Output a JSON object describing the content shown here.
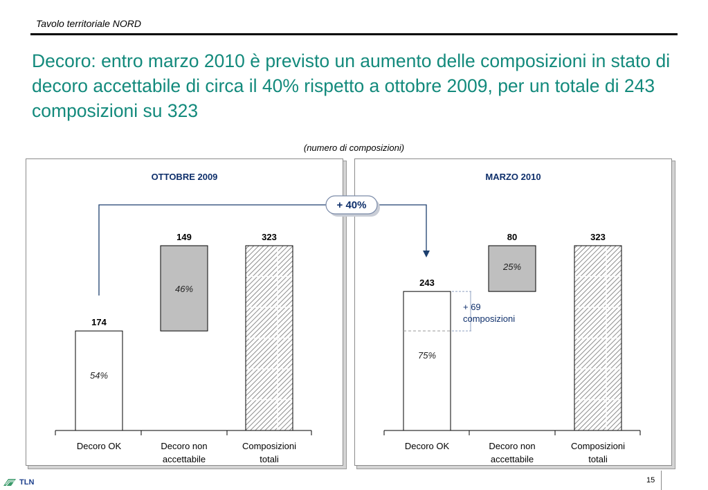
{
  "header": {
    "text": "Tavolo territoriale NORD"
  },
  "title": "Decoro: entro marzo 2010 è previsto un aumento delle composizioni in stato di decoro accettabile di circa il 40% rispetto a ottobre 2009, per un totale di 243 composizioni su 323",
  "subtitle": "(numero di  composizioni)",
  "growth_badge": "+ 40%",
  "increase_note": [
    "+ 69",
    "composizioni"
  ],
  "footer": {
    "logo_text": "TLN",
    "page_number": "15"
  },
  "colors": {
    "title": "#138a7c",
    "panel_title": "#0e2f6b",
    "gray_bar": "#bfbfbf",
    "arrow": "#1c3f6e"
  },
  "chart_data": [
    {
      "type": "bar",
      "title": "OTTOBRE 2009",
      "categories": [
        "Decoro OK",
        "Decoro non accettabile",
        "Composizioni totali"
      ],
      "category_lines": [
        [
          "Decoro OK"
        ],
        [
          "Decoro non",
          "accettabile"
        ],
        [
          "Composizioni",
          "totali"
        ]
      ],
      "values": [
        174,
        149,
        323
      ],
      "value_labels": [
        "174",
        "149",
        "323"
      ],
      "percent_labels": [
        "54%",
        "46%",
        ""
      ],
      "styles": [
        "white",
        "gray",
        "hatched"
      ],
      "ylim": [
        0,
        323
      ]
    },
    {
      "type": "bar",
      "title": "MARZO 2010",
      "categories": [
        "Decoro OK",
        "Decoro non accettabile",
        "Composizioni totali"
      ],
      "category_lines": [
        [
          "Decoro OK"
        ],
        [
          "Decoro non",
          "accettabile"
        ],
        [
          "Composizioni",
          "totali"
        ]
      ],
      "values": [
        243,
        80,
        323
      ],
      "value_labels": [
        "243",
        "80",
        "323"
      ],
      "percent_labels": [
        "75%",
        "25%",
        ""
      ],
      "styles": [
        "white",
        "gray",
        "hatched"
      ],
      "previous_ok": 174,
      "ylim": [
        0,
        323
      ]
    }
  ]
}
